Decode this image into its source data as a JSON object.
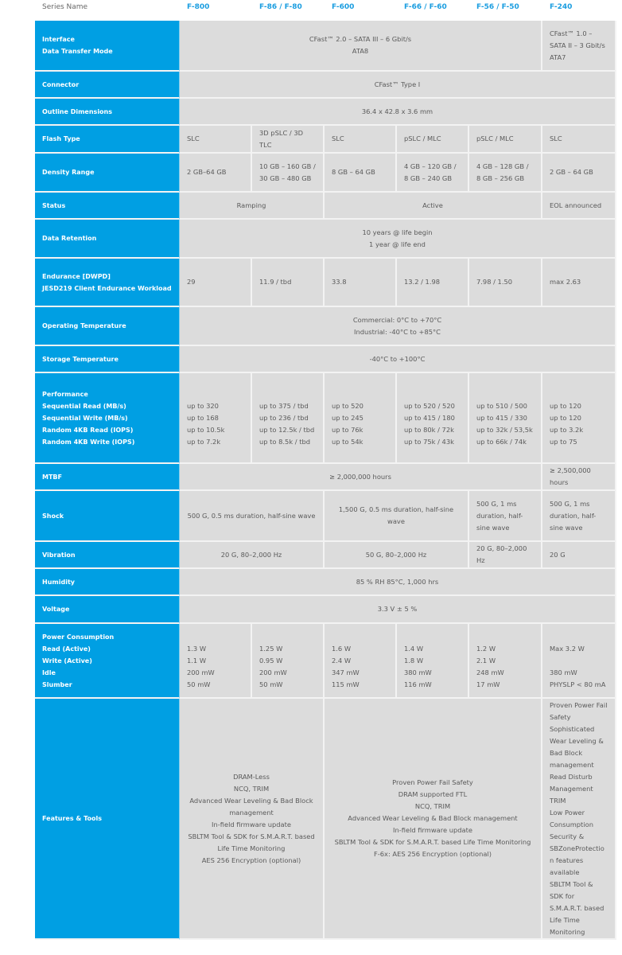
{
  "header": {
    "label": "Series Name",
    "series": [
      "F-800",
      "F-86 / F-80",
      "F-600",
      "F-66 / F-60",
      "F-56 / F-50",
      "F-240"
    ]
  },
  "colors": {
    "label_bg": "#009fe3",
    "cell_bg": "#dcdcdc",
    "series_text": "#1a9de0"
  },
  "rows": [
    {
      "label": [
        "Interface",
        "Data Transfer Mode"
      ],
      "cells": [
        {
          "span": 5,
          "lines": [
            "CFast™ 2.0 – SATA III – 6 Gbit/s",
            "ATA8"
          ]
        },
        {
          "span": 1,
          "lines": [
            "CFast™ 1.0 –SATA II – 3 Gbit/s",
            "ATA7"
          ]
        }
      ]
    },
    {
      "label": [
        "Connector"
      ],
      "cells": [
        {
          "span": 6,
          "lines": [
            "CFast™ Type I"
          ]
        }
      ]
    },
    {
      "label": [
        "Outline Dimensions"
      ],
      "cells": [
        {
          "span": 6,
          "lines": [
            "36.4 x 42.8 x 3.6 mm"
          ]
        }
      ]
    },
    {
      "label": [
        "Flash Type"
      ],
      "cells": [
        {
          "span": 1,
          "lines": [
            "SLC"
          ]
        },
        {
          "span": 1,
          "lines": [
            "3D pSLC / 3D TLC"
          ]
        },
        {
          "span": 1,
          "lines": [
            "SLC"
          ]
        },
        {
          "span": 1,
          "lines": [
            "pSLC / MLC"
          ]
        },
        {
          "span": 1,
          "lines": [
            "pSLC / MLC"
          ]
        },
        {
          "span": 1,
          "lines": [
            "SLC"
          ]
        }
      ]
    },
    {
      "label": [
        "Density Range"
      ],
      "cells": [
        {
          "span": 1,
          "lines": [
            "2 GB–64 GB"
          ]
        },
        {
          "span": 1,
          "lines": [
            "10 GB – 160 GB /",
            "30 GB – 480 GB"
          ]
        },
        {
          "span": 1,
          "lines": [
            "8 GB – 64 GB"
          ]
        },
        {
          "span": 1,
          "lines": [
            "4 GB – 120 GB /",
            "8 GB – 240 GB"
          ]
        },
        {
          "span": 1,
          "lines": [
            "4 GB – 128 GB /",
            "8 GB – 256 GB"
          ]
        },
        {
          "span": 1,
          "lines": [
            "2 GB – 64 GB"
          ]
        }
      ]
    },
    {
      "label": [
        "Status"
      ],
      "cells": [
        {
          "span": 2,
          "lines": [
            "Ramping"
          ]
        },
        {
          "span": 3,
          "lines": [
            "Active"
          ]
        },
        {
          "span": 1,
          "lines": [
            "EOL announced"
          ]
        }
      ]
    },
    {
      "label": [
        "Data Retention"
      ],
      "cells": [
        {
          "span": 6,
          "lines": [
            "10 years @ life begin",
            "1 year @ life end"
          ]
        }
      ]
    },
    {
      "label": [
        "Endurance [DWPD]",
        "JESD219 Client Endurance Workload"
      ],
      "cells": [
        {
          "span": 1,
          "lines": [
            "29"
          ]
        },
        {
          "span": 1,
          "lines": [
            "11.9 / tbd"
          ]
        },
        {
          "span": 1,
          "lines": [
            "33.8"
          ]
        },
        {
          "span": 1,
          "lines": [
            "13.2 / 1.98"
          ]
        },
        {
          "span": 1,
          "lines": [
            "7.98 / 1.50"
          ]
        },
        {
          "span": 1,
          "lines": [
            "max 2.63"
          ]
        }
      ]
    },
    {
      "label": [
        "Operating Temperature"
      ],
      "cells": [
        {
          "span": 6,
          "lines": [
            "Commercial: 0°C to +70°C",
            "Industrial: -40°C to +85°C"
          ]
        }
      ]
    },
    {
      "label": [
        "Storage Temperature"
      ],
      "cells": [
        {
          "span": 6,
          "lines": [
            "-40°C to +100°C"
          ]
        }
      ]
    },
    {
      "label": [
        "Performance",
        "Sequential Read (MB/s)",
        "Sequential Write (MB/s)",
        "Random 4KB Read (IOPS)",
        "Random 4KB Write (IOPS)"
      ],
      "cells": [
        {
          "span": 1,
          "lines": [
            "",
            "up to 320",
            "up to 168",
            "up to 10.5k",
            "up to 7.2k"
          ]
        },
        {
          "span": 1,
          "lines": [
            "",
            "up to 375 / tbd",
            "up to 236 / tbd",
            "up to 12.5k / tbd",
            "up to 8.5k / tbd"
          ]
        },
        {
          "span": 1,
          "lines": [
            "",
            "up to 520",
            "up to 245",
            "up to 76k",
            "up to 54k"
          ]
        },
        {
          "span": 1,
          "lines": [
            "",
            "up to 520 / 520",
            "up to 415 / 180",
            "up to 80k / 72k",
            "up to 75k / 43k"
          ]
        },
        {
          "span": 1,
          "lines": [
            "",
            "up to 510 / 500",
            "up to 415 / 330",
            "up to 32k / 53,5k",
            "up to 66k / 74k"
          ]
        },
        {
          "span": 1,
          "lines": [
            "",
            "up to 120",
            "up to 120",
            "up to 3.2k",
            "up to 75"
          ]
        }
      ]
    },
    {
      "label": [
        "MTBF"
      ],
      "cells": [
        {
          "span": 5,
          "lines": [
            "≥ 2,000,000 hours"
          ]
        },
        {
          "span": 1,
          "lines": [
            "≥ 2,500,000 hours"
          ]
        }
      ]
    },
    {
      "label": [
        "Shock"
      ],
      "cells": [
        {
          "span": 2,
          "lines": [
            "500 G, 0.5 ms duration, half-sine wave"
          ]
        },
        {
          "span": 2,
          "lines": [
            "1,500 G, 0.5 ms duration, half-sine wave"
          ]
        },
        {
          "span": 1,
          "lines": [
            "500 G, 1 ms duration, half-sine wave"
          ]
        },
        {
          "span": 1,
          "lines": [
            "500 G, 1 ms duration, half-sine wave"
          ]
        }
      ]
    },
    {
      "label": [
        "Vibration"
      ],
      "cells": [
        {
          "span": 2,
          "lines": [
            "20 G, 80–2,000 Hz"
          ]
        },
        {
          "span": 2,
          "lines": [
            "50 G, 80–2,000 Hz"
          ]
        },
        {
          "span": 1,
          "lines": [
            "20 G, 80–2,000 Hz"
          ]
        },
        {
          "span": 1,
          "lines": [
            "20 G"
          ]
        }
      ]
    },
    {
      "label": [
        "Humidity"
      ],
      "cells": [
        {
          "span": 6,
          "lines": [
            "85 % RH 85°C, 1,000 hrs"
          ]
        }
      ]
    },
    {
      "label": [
        "Voltage"
      ],
      "cells": [
        {
          "span": 6,
          "lines": [
            "3.3 V ± 5 %"
          ]
        }
      ]
    },
    {
      "label": [
        "Power Consumption",
        "Read (Active)",
        "Write (Active)",
        "Idle",
        "Slumber"
      ],
      "cells": [
        {
          "span": 1,
          "lines": [
            "",
            "1.3 W",
            "1.1 W",
            "200 mW",
            "50 mW"
          ]
        },
        {
          "span": 1,
          "lines": [
            "",
            "1.25 W",
            "0.95 W",
            "200 mW",
            "50 mW"
          ]
        },
        {
          "span": 1,
          "lines": [
            "",
            "1.6 W",
            "2.4 W",
            "347 mW",
            "115 mW"
          ]
        },
        {
          "span": 1,
          "lines": [
            "",
            "1.4 W",
            "1.8 W",
            "380 mW",
            "116 mW"
          ]
        },
        {
          "span": 1,
          "lines": [
            "",
            "1.2 W",
            "2.1 W",
            "248 mW",
            "17 mW"
          ]
        },
        {
          "span": 1,
          "lines": [
            "",
            "Max 3.2 W",
            "",
            "380 mW",
            "PHYSLP < 80 mA"
          ]
        }
      ]
    },
    {
      "label": [
        "Features & Tools"
      ],
      "cells": [
        {
          "span": 2,
          "lines": [
            "DRAM-Less",
            "NCQ, TRIM",
            "Advanced Wear Leveling & Bad Block management",
            "In-field firmware update",
            "SBLTM Tool & SDK for S.M.A.R.T. based Life Time Monitoring",
            "AES 256 Encryption (optional)"
          ]
        },
        {
          "span": 3,
          "lines": [
            "Proven Power Fail Safety",
            "DRAM supported FTL",
            "NCQ, TRIM",
            "Advanced Wear Leveling & Bad Block management",
            "In-field firmware update",
            "SBLTM Tool & SDK for S.M.A.R.T. based Life Time Monitoring",
            "F-6x: AES 256 Encryption (optional)"
          ]
        },
        {
          "span": 1,
          "lines": [
            "Proven Power Fail Safety",
            "Sophisticated Wear Leveling &",
            "Bad Block management",
            "Read Disturb Management",
            "TRIM",
            "Low Power Consumption",
            "Security & SBZoneProtection features available",
            "SBLTM Tool & SDK for S.M.A.R.T. based Life Time Monitoring"
          ]
        }
      ]
    }
  ]
}
